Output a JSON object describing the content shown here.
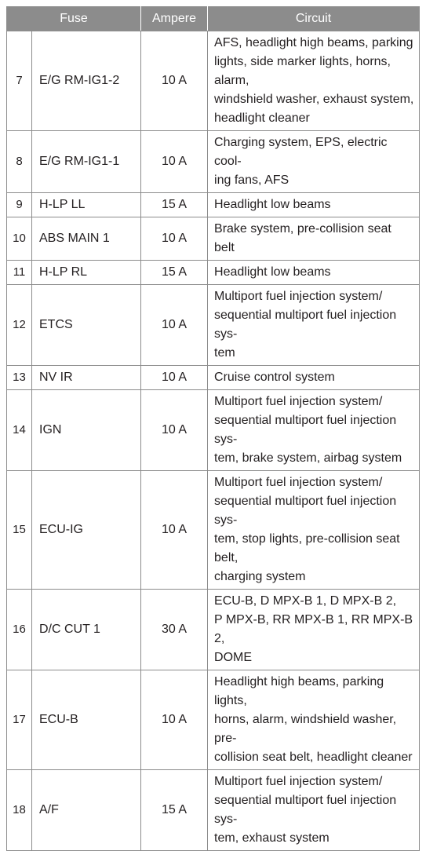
{
  "headers": {
    "fuse": "Fuse",
    "ampere": "Ampere",
    "circuit": "Circuit"
  },
  "rows": [
    {
      "num": "7",
      "fuse": "E/G RM-IG1-2",
      "ampere": "10 A",
      "circuit": "AFS, headlight high beams, parking\nlights, side marker lights, horns, alarm,\nwindshield washer, exhaust system,\nheadlight cleaner"
    },
    {
      "num": "8",
      "fuse": "E/G RM-IG1-1",
      "ampere": "10 A",
      "circuit": "Charging system, EPS, electric cool-\ning fans, AFS"
    },
    {
      "num": "9",
      "fuse": "H-LP LL",
      "ampere": "15 A",
      "circuit": "Headlight low beams"
    },
    {
      "num": "10",
      "fuse": "ABS MAIN 1",
      "ampere": "10 A",
      "circuit": "Brake system, pre-collision seat belt"
    },
    {
      "num": "11",
      "fuse": "H-LP RL",
      "ampere": "15 A",
      "circuit": "Headlight low beams"
    },
    {
      "num": "12",
      "fuse": "ETCS",
      "ampere": "10 A",
      "circuit": "Multiport fuel injection system/\nsequential multiport fuel injection sys-\ntem"
    },
    {
      "num": "13",
      "fuse": "NV IR",
      "ampere": "10 A",
      "circuit": "Cruise control system"
    },
    {
      "num": "14",
      "fuse": "IGN",
      "ampere": "10 A",
      "circuit": "Multiport fuel injection system/\nsequential multiport fuel injection sys-\ntem, brake system, airbag system"
    },
    {
      "num": "15",
      "fuse": "ECU-IG",
      "ampere": "10 A",
      "circuit": "Multiport fuel injection system/\nsequential multiport fuel injection sys-\ntem, stop lights, pre-collision seat belt,\ncharging system"
    },
    {
      "num": "16",
      "fuse": "D/C CUT 1",
      "ampere": "30 A",
      "circuit": "ECU-B, D MPX-B 1, D MPX-B 2,\nP MPX-B, RR MPX-B 1, RR MPX-B 2,\nDOME"
    },
    {
      "num": "17",
      "fuse": "ECU-B",
      "ampere": "10 A",
      "circuit": "Headlight high beams, parking lights,\nhorns, alarm, windshield washer, pre-\ncollision seat belt, headlight cleaner"
    },
    {
      "num": "18",
      "fuse": "A/F",
      "ampere": "15 A",
      "circuit": "Multiport fuel injection system/\nsequential multiport fuel injection sys-\ntem, exhaust system"
    }
  ]
}
